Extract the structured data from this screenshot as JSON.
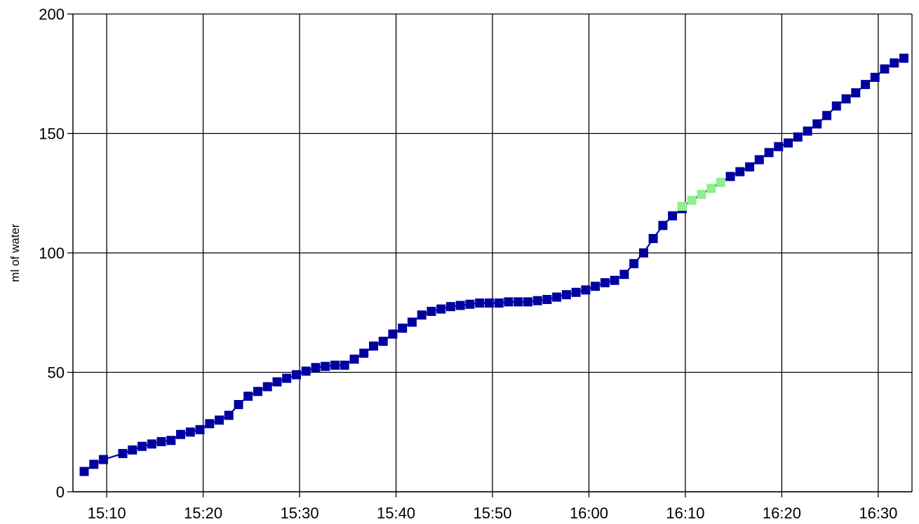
{
  "chart_data": {
    "type": "line",
    "title": "",
    "xlabel": "",
    "ylabel": "ml of water",
    "x_unit": "time (HH:MM)",
    "xlim": [
      "15:06:30",
      "16:33:30"
    ],
    "ylim": [
      0,
      200
    ],
    "x_ticks": [
      "15:10",
      "15:20",
      "15:30",
      "15:40",
      "15:50",
      "16:00",
      "16:10",
      "16:20",
      "16:30"
    ],
    "y_ticks": [
      0,
      50,
      100,
      150,
      200
    ],
    "grid": true,
    "colors": {
      "normal": "#0000A0",
      "highlight": "#90EE90"
    },
    "series": [
      {
        "x": [
          "15:07:40",
          "15:08:40",
          "15:09:40",
          "15:11:40",
          "15:12:40",
          "15:13:40",
          "15:14:40",
          "15:15:40",
          "15:16:40",
          "15:17:40",
          "15:18:40",
          "15:19:40",
          "15:20:40",
          "15:21:40",
          "15:22:40",
          "15:23:40",
          "15:24:40",
          "15:25:40",
          "15:26:40",
          "15:27:40",
          "15:28:40",
          "15:29:40",
          "15:30:40",
          "15:31:40",
          "15:32:40",
          "15:33:40",
          "15:34:40",
          "15:35:40",
          "15:36:40",
          "15:37:40",
          "15:38:40",
          "15:39:40",
          "15:40:40",
          "15:41:40",
          "15:42:40",
          "15:43:40",
          "15:44:40",
          "15:45:40",
          "15:46:40",
          "15:47:40",
          "15:48:40",
          "15:49:40",
          "15:50:40",
          "15:51:40",
          "15:52:40",
          "15:53:40",
          "15:54:40",
          "15:55:40",
          "15:56:40",
          "15:57:40",
          "15:58:40",
          "15:59:40",
          "16:00:40",
          "16:01:40",
          "16:02:40",
          "16:03:40",
          "16:04:40",
          "16:05:40",
          "16:06:40",
          "16:07:40",
          "16:08:40",
          "16:09:40"
        ],
        "values": [
          8.5,
          11.5,
          13.5,
          16,
          17.5,
          19,
          20,
          21,
          21.5,
          24,
          25,
          26,
          28.5,
          30,
          32,
          36.5,
          40,
          42,
          44,
          46,
          47.5,
          49,
          50.5,
          52,
          52.5,
          53,
          53,
          55.5,
          58,
          61,
          63,
          66,
          68.5,
          71,
          74,
          75.5,
          76.5,
          77.5,
          78,
          78.5,
          79,
          79,
          79,
          79.5,
          79.5,
          79.5,
          80,
          80.5,
          81.5,
          82.5,
          83.5,
          84.5,
          86,
          87.5,
          88.5,
          91,
          95.5,
          100,
          106,
          111.5,
          115.5,
          118.5
        ],
        "marker_colors": [
          "normal",
          "normal",
          "normal",
          "normal",
          "normal",
          "normal",
          "normal",
          "normal",
          "normal",
          "normal",
          "normal",
          "normal",
          "normal",
          "normal",
          "normal",
          "normal",
          "normal",
          "normal",
          "normal",
          "normal",
          "normal",
          "normal",
          "normal",
          "normal",
          "normal",
          "normal",
          "normal",
          "normal",
          "normal",
          "normal",
          "normal",
          "normal",
          "normal",
          "normal",
          "normal",
          "normal",
          "normal",
          "normal",
          "normal",
          "normal",
          "normal",
          "normal",
          "normal",
          "normal",
          "normal",
          "normal",
          "normal",
          "normal",
          "normal",
          "normal",
          "normal",
          "normal",
          "normal",
          "normal",
          "normal",
          "normal",
          "normal",
          "normal",
          "normal",
          "normal",
          "normal",
          "normal"
        ]
      },
      {
        "x": [
          "16:09:40",
          "16:10:40",
          "16:11:40",
          "16:12:40",
          "16:13:40"
        ],
        "values": [
          119.5,
          122,
          124.5,
          127,
          129.5
        ],
        "marker_colors": [
          "highlight",
          "highlight",
          "highlight",
          "highlight",
          "highlight"
        ]
      },
      {
        "x": [
          "16:14:40",
          "16:15:40",
          "16:16:40",
          "16:17:40",
          "16:18:40",
          "16:19:40",
          "16:20:40",
          "16:21:40",
          "16:22:40",
          "16:23:40",
          "16:24:40",
          "16:25:40",
          "16:26:40",
          "16:27:40",
          "16:28:40",
          "16:29:40",
          "16:30:40",
          "16:31:40",
          "16:32:40"
        ],
        "values": [
          132,
          134,
          136,
          139,
          142,
          144.5,
          146,
          148.5,
          151,
          154,
          157.5,
          161.5,
          164.5,
          167,
          170.5,
          173.5,
          177,
          179.5,
          181.5
        ],
        "marker_colors": [
          "normal",
          "normal",
          "normal",
          "normal",
          "normal",
          "normal",
          "normal",
          "normal",
          "normal",
          "normal",
          "normal",
          "normal",
          "normal",
          "normal",
          "normal",
          "normal",
          "normal",
          "normal",
          "normal"
        ]
      }
    ]
  }
}
